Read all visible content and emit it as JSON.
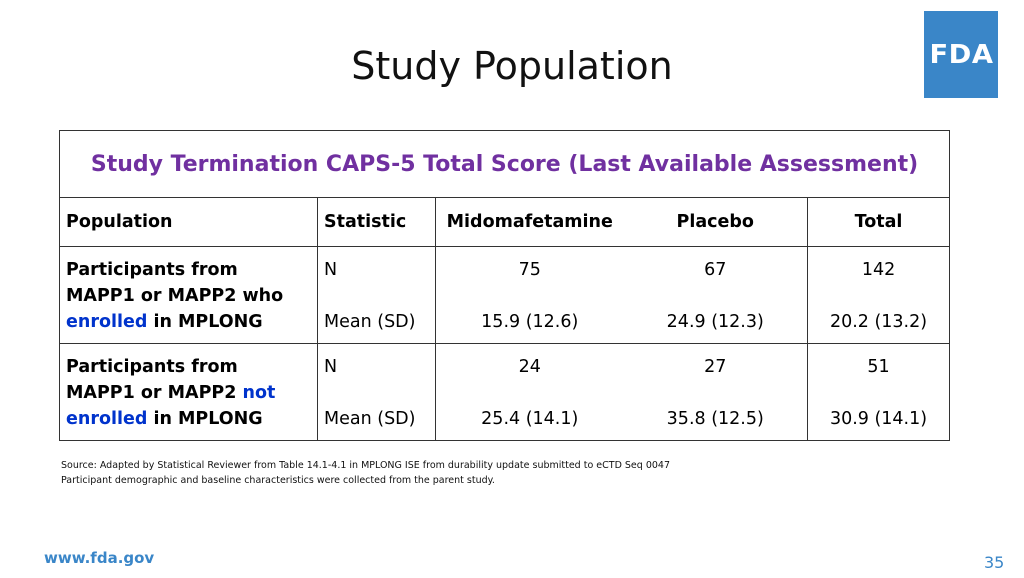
{
  "slide": {
    "title": "Study Population",
    "logo_text": "FDA",
    "url": "www.fda.gov",
    "page_number": "35"
  },
  "table": {
    "caption": "Study Termination CAPS-5 Total Score (Last Available Assessment)",
    "headers": [
      "Population",
      "Statistic",
      "Midomafetamine",
      "Placebo",
      "Total"
    ],
    "groups": [
      {
        "population": {
          "pre": "Participants from MAPP1 or MAPP2 who ",
          "highlight": "enrolled",
          "post": " in MPLONG"
        },
        "rows": [
          {
            "statistic": "N",
            "midomafetamine": "75",
            "placebo": "67",
            "total": "142"
          },
          {
            "statistic": "Mean (SD)",
            "midomafetamine": "15.9 (12.6)",
            "placebo": "24.9 (12.3)",
            "total": "20.2 (13.2)"
          }
        ]
      },
      {
        "population": {
          "pre": "Participants from MAPP1 or MAPP2 ",
          "highlight": "not enrolled",
          "post": " in MPLONG"
        },
        "rows": [
          {
            "statistic": "N",
            "midomafetamine": "24",
            "placebo": "27",
            "total": "51"
          },
          {
            "statistic": "Mean (SD)",
            "midomafetamine": "25.4 (14.1)",
            "placebo": "35.8 (12.5)",
            "total": "30.9 (14.1)"
          }
        ]
      }
    ]
  },
  "footnotes": {
    "source": "Source: Adapted by Statistical Reviewer from Table 14.1-4.1 in MPLONG ISE from durability update submitted to eCTD Seq 0047",
    "note": "Participant demographic and baseline characteristics were collected from the parent study."
  },
  "colors": {
    "caption": "#7030a0",
    "highlight": "#0033cc",
    "fda_blue": "#3a86c8"
  }
}
